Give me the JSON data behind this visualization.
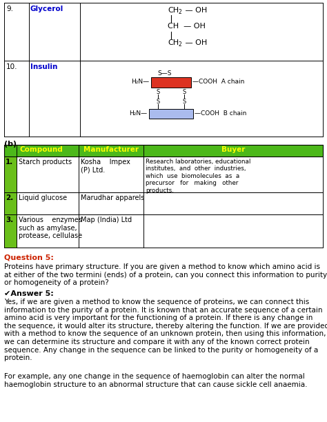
{
  "bg_color": "#ffffff",
  "green_header_bg": "#4cb81a",
  "green_number_bg": "#6abf1a",
  "green_header_text": "#ffff00",
  "blue_text": "#0000cc",
  "red_chain_color": "#dd3322",
  "blue_chain_color": "#aabbee",
  "question_color": "#cc2200",
  "row9_num": "9.",
  "row9_label": "Glycerol",
  "row10_num": "10.",
  "row10_label": "Insulin",
  "table_b_title": "(b)",
  "table_b_headers": [
    "Compound",
    "Manufacturer",
    "Buyer"
  ],
  "question5_title": "Question 5:",
  "question5_body": "Proteins have primary structure. If you are given a method to know which amino acid is\nat either of the two termini (ends) of a protein, can you connect this information to purity\nor homogeneity of a protein?",
  "answer5_title": "✔Answer 5:",
  "answer5_body1": "Yes, if we are given a method to know the sequence of proteins, we can connect this\ninformation to the purity of a protein. It is known that an accurate sequence of a certain\namino acid is very important for the functioning of a protein. If there is any change in\nthe sequence, it would alter its structure, thereby altering the function. If we are provided\nwith a method to know the sequence of an unknown protein, then using this information,\nwe can determine its structure and compare it with any of the known correct protein\nsequence. Any change in the sequence can be linked to the purity or homogeneity of a\nprotein.",
  "answer5_body2": "For example, any one change in the sequence of haemoglobin can alter the normal\nhaemoglobin structure to an abnormal structure that can cause sickle cell anaemia."
}
